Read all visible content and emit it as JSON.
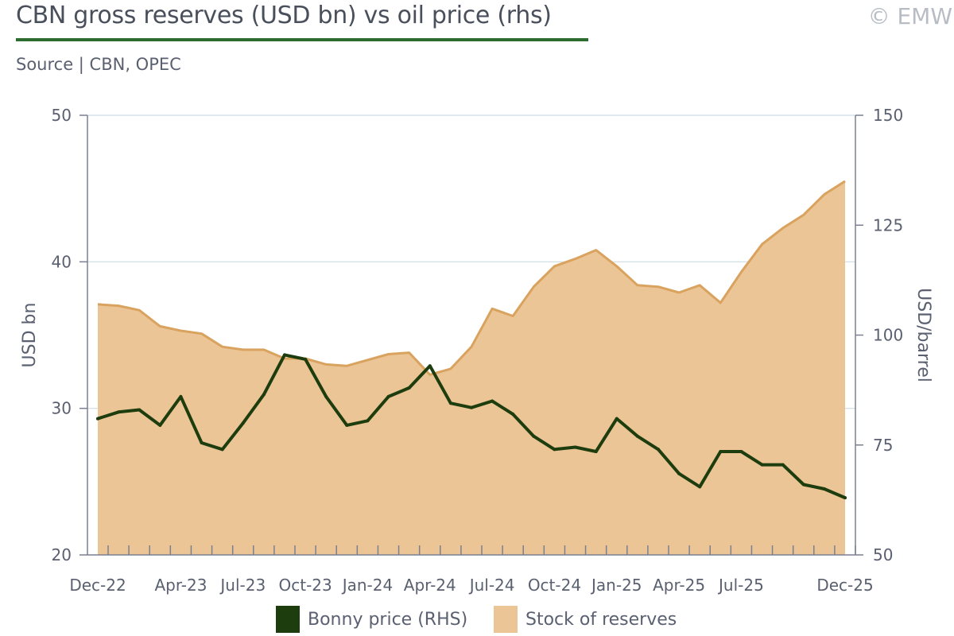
{
  "header": {
    "title": "CBN gross reserves (USD bn) vs oil price (rhs)",
    "source": "Source | CBN, OPEC",
    "copyright": "© EMW"
  },
  "colors": {
    "title_rule": "#2e6b2e",
    "oil_line": "#1e3d0e",
    "reserves_fill": "#ebc595",
    "reserves_line": "#d9a35f",
    "grid": "#cfdbe3",
    "axis": "#7a8090"
  },
  "chart_data": {
    "type": "area",
    "x_tick_labels": [
      "Dec-22",
      "Apr-23",
      "Jul-23",
      "Oct-23",
      "Jan-24",
      "Apr-24",
      "Jul-24",
      "Oct-24",
      "Jan-25",
      "Apr-25",
      "Jul-25",
      "Dec-25"
    ],
    "x_tick_index": [
      0,
      4,
      7,
      10,
      13,
      16,
      19,
      22,
      25,
      28,
      31,
      36
    ],
    "n_points": 37,
    "ylabel_left": "USD bn",
    "ylabel_right": "USD/barrel",
    "ylim_left": [
      20,
      50
    ],
    "yticks_left": [
      20,
      30,
      40,
      50
    ],
    "ylim_right": [
      50,
      150
    ],
    "yticks_right": [
      50,
      75,
      100,
      125,
      150
    ],
    "grid": true,
    "legend_position": "bottom",
    "series": [
      {
        "name": "Stock of reserves",
        "axis": "left",
        "type": "area",
        "values": [
          37.1,
          37.0,
          36.7,
          35.6,
          35.3,
          35.1,
          34.2,
          34.0,
          34.0,
          33.4,
          33.4,
          33.0,
          32.9,
          33.3,
          33.7,
          33.8,
          32.3,
          32.7,
          34.2,
          36.8,
          36.3,
          38.3,
          39.7,
          40.2,
          40.8,
          39.7,
          38.4,
          38.3,
          37.9,
          38.4,
          37.2,
          39.3,
          41.2,
          42.3,
          43.2,
          44.6,
          45.5
        ]
      },
      {
        "name": "Bonny price (RHS)",
        "axis": "right",
        "type": "line",
        "values": [
          81,
          82.5,
          83,
          79.5,
          86,
          75.5,
          74,
          80,
          86.5,
          95.5,
          94.5,
          86,
          79.5,
          80.5,
          86,
          88,
          93,
          84.5,
          83.5,
          85,
          82,
          77,
          74,
          74.5,
          73.5,
          81,
          77,
          74,
          68.5,
          65.5,
          73.5,
          73.5,
          70.5,
          70.5,
          66,
          65,
          63
        ]
      }
    ]
  },
  "legend": {
    "items": [
      {
        "label": "Bonny price (RHS)",
        "color": "#1e3d0e"
      },
      {
        "label": "Stock of reserves",
        "color": "#ebc595"
      }
    ]
  }
}
